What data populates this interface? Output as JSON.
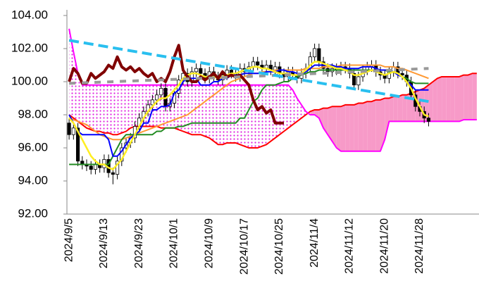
{
  "chart_data": {
    "type": "candlestick",
    "categories": [
      "2024/9/5",
      null,
      null,
      null,
      null,
      null,
      null,
      null,
      "2024/9/13",
      null,
      null,
      null,
      null,
      null,
      null,
      null,
      "2024/9/23",
      null,
      null,
      null,
      null,
      null,
      null,
      null,
      "2024/10/1",
      null,
      null,
      null,
      null,
      null,
      null,
      null,
      "2024/10/9",
      null,
      null,
      null,
      null,
      null,
      null,
      null,
      "2024/10/17",
      null,
      null,
      null,
      null,
      null,
      null,
      null,
      "2024/10/25",
      null,
      null,
      null,
      null,
      null,
      null,
      null,
      "2024/11/4",
      null,
      null,
      null,
      null,
      null,
      null,
      null,
      "2024/11/12",
      null,
      null,
      null,
      null,
      null,
      null,
      null,
      "2024/11/20",
      null,
      null,
      null,
      null,
      null,
      null,
      null,
      "2024/11/28",
      null,
      null,
      null,
      null,
      null,
      null,
      null,
      null,
      null,
      null,
      null,
      null,
      null
    ],
    "ylim": [
      92,
      104
    ],
    "yticks": [
      {
        "value": 92,
        "label": "92.00"
      },
      {
        "value": 94,
        "label": "94.00"
      },
      {
        "value": 96,
        "label": "96.00"
      },
      {
        "value": 98,
        "label": "98.00"
      },
      {
        "value": 100,
        "label": "100.00"
      },
      {
        "value": 102,
        "label": "102.00"
      },
      {
        "value": 104,
        "label": "104.00"
      }
    ],
    "grid": false,
    "candles": {
      "up_color": "#ffffff",
      "down_color": "#000000",
      "open": [
        97.5,
        96.8,
        97.2,
        95.2,
        95.0,
        94.9,
        94.7,
        95.0,
        94.8,
        95.3,
        94.5,
        94.4,
        95.2,
        96.0,
        96.3,
        96.6,
        97.3,
        97.8,
        98.2,
        98.6,
        98.9,
        99.2,
        99.6,
        98.5,
        98.7,
        99.3,
        100.1,
        100.5,
        100.0,
        100.6,
        100.8,
        100.5,
        100.2,
        100.6,
        100.3,
        100.1,
        100.4,
        100.7,
        100.5,
        100.3,
        100.8,
        100.6,
        100.9,
        101.2,
        101.0,
        100.8,
        101.0,
        100.7,
        100.9,
        100.5,
        100.3,
        100.6,
        100.4,
        100.2,
        100.5,
        100.8,
        101.5,
        102.0,
        101.2,
        100.8,
        100.6,
        100.8,
        100.7,
        100.9,
        100.8,
        100.5,
        99.8,
        100.3,
        100.7,
        100.9,
        101.0,
        100.6,
        100.4,
        100.2,
        100.6,
        100.9,
        100.5,
        100.4,
        100.0,
        99.2,
        98.5,
        98.2,
        97.8,
        null,
        null,
        null,
        null,
        null,
        null,
        null,
        null,
        null,
        null,
        null
      ],
      "high": [
        97.8,
        97.5,
        97.5,
        95.5,
        95.3,
        95.2,
        95.3,
        95.3,
        95.6,
        95.6,
        94.8,
        95.5,
        96.3,
        96.6,
        96.9,
        97.6,
        98.1,
        98.5,
        98.9,
        99.2,
        99.5,
        99.9,
        99.9,
        99.0,
        99.6,
        100.4,
        100.8,
        100.8,
        100.9,
        101.1,
        101.1,
        100.8,
        100.9,
        100.9,
        100.6,
        100.7,
        101.0,
        101.0,
        100.8,
        101.1,
        101.1,
        101.2,
        101.5,
        101.5,
        101.3,
        101.3,
        101.3,
        101.2,
        101.2,
        100.8,
        100.9,
        100.9,
        100.7,
        100.8,
        101.1,
        101.8,
        102.3,
        102.3,
        101.5,
        101.1,
        101.1,
        101.1,
        101.2,
        101.2,
        101.1,
        100.8,
        100.6,
        101.0,
        101.2,
        101.3,
        101.3,
        100.9,
        100.7,
        100.9,
        101.2,
        101.2,
        100.8,
        100.7,
        100.3,
        99.5,
        98.8,
        98.5,
        98.1,
        null,
        null,
        null,
        null,
        null,
        null,
        null,
        null,
        null,
        null,
        null
      ],
      "low": [
        96.5,
        96.5,
        94.9,
        94.7,
        94.6,
        94.4,
        94.4,
        94.5,
        94.5,
        94.2,
        93.8,
        94.1,
        94.9,
        95.7,
        96.0,
        96.3,
        97.0,
        97.5,
        97.9,
        98.3,
        98.6,
        98.9,
        98.2,
        98.2,
        98.4,
        99.0,
        99.8,
        99.7,
        99.7,
        100.3,
        100.2,
        99.9,
        99.9,
        100.0,
        99.8,
        99.8,
        100.1,
        100.2,
        100.0,
        100.0,
        100.3,
        100.3,
        100.6,
        100.7,
        100.5,
        100.5,
        100.4,
        100.4,
        100.2,
        100.0,
        100.0,
        100.1,
        99.9,
        99.9,
        100.2,
        100.5,
        101.2,
        100.9,
        100.5,
        100.3,
        100.3,
        100.4,
        100.4,
        100.5,
        100.2,
        99.5,
        99.5,
        100.0,
        100.4,
        100.6,
        100.3,
        100.1,
        99.9,
        99.9,
        100.3,
        100.2,
        100.1,
        99.7,
        98.9,
        98.2,
        97.9,
        97.5,
        97.3,
        null,
        null,
        null,
        null,
        null,
        null,
        null,
        null,
        null,
        null,
        null
      ],
      "close": [
        96.8,
        97.2,
        95.2,
        95.0,
        94.9,
        94.7,
        95.0,
        94.8,
        95.3,
        94.5,
        94.4,
        95.2,
        96.0,
        96.3,
        96.6,
        97.3,
        97.8,
        98.2,
        98.6,
        98.9,
        99.2,
        99.6,
        98.5,
        98.7,
        99.3,
        100.1,
        100.5,
        100.0,
        100.6,
        100.8,
        100.5,
        100.2,
        100.6,
        100.3,
        100.1,
        100.4,
        100.7,
        100.5,
        100.3,
        100.8,
        100.6,
        100.9,
        101.2,
        101.0,
        100.8,
        101.0,
        100.7,
        100.9,
        100.5,
        100.3,
        100.6,
        100.4,
        100.2,
        100.5,
        100.8,
        101.5,
        102.0,
        101.2,
        100.8,
        100.6,
        100.8,
        100.7,
        100.9,
        100.8,
        100.5,
        99.8,
        100.3,
        100.7,
        100.9,
        101.0,
        100.6,
        100.4,
        100.2,
        100.6,
        100.9,
        100.5,
        100.4,
        100.0,
        99.2,
        98.5,
        98.2,
        97.8,
        97.6,
        null,
        null,
        null,
        null,
        null,
        null,
        null,
        null,
        null,
        null,
        null
      ]
    },
    "cloud": {
      "fill_b_above": "#e020e0",
      "fill_a_above": "#f79ac8",
      "span_a": {
        "color": "#ff0000",
        "values": [
          98.0,
          97.8,
          97.6,
          97.4,
          97.2,
          97.1,
          97.0,
          97.0,
          96.9,
          96.9,
          96.8,
          96.8,
          96.9,
          97.0,
          97.2,
          97.3,
          97.3,
          97.3,
          97.3,
          97.3,
          97.3,
          97.2,
          97.2,
          97.2,
          97.2,
          97.1,
          97.0,
          96.9,
          96.8,
          96.8,
          96.8,
          96.7,
          96.6,
          96.4,
          96.2,
          96.2,
          96.3,
          96.3,
          96.3,
          96.2,
          96.1,
          96.0,
          96.0,
          96.0,
          96.1,
          96.2,
          96.4,
          96.6,
          96.8,
          97.0,
          97.2,
          97.4,
          97.6,
          97.8,
          98.0,
          98.2,
          98.3,
          98.3,
          98.4,
          98.4,
          98.5,
          98.5,
          98.5,
          98.6,
          98.6,
          98.6,
          98.7,
          98.7,
          98.8,
          98.8,
          98.9,
          98.9,
          99.0,
          99.0,
          99.1,
          99.1,
          99.2,
          99.2,
          99.3,
          99.4,
          99.5,
          99.6,
          99.8,
          100.0,
          100.2,
          100.3,
          100.3,
          100.3,
          100.3,
          100.3,
          100.4,
          100.4,
          100.5,
          100.5
        ]
      },
      "span_b": {
        "color": "#ff00ff",
        "values": [
          103.2,
          101.8,
          100.5,
          99.8,
          99.8,
          99.8,
          99.8,
          99.8,
          99.8,
          99.8,
          99.8,
          99.8,
          99.8,
          99.8,
          99.8,
          99.8,
          99.8,
          99.8,
          99.8,
          99.8,
          99.8,
          99.8,
          99.8,
          99.8,
          99.8,
          99.8,
          99.8,
          99.8,
          99.8,
          99.8,
          99.8,
          99.8,
          99.8,
          99.8,
          99.8,
          99.8,
          99.8,
          99.8,
          99.8,
          99.8,
          99.8,
          99.8,
          99.8,
          99.8,
          99.8,
          99.8,
          99.8,
          99.8,
          99.8,
          99.8,
          99.8,
          99.5,
          99.0,
          98.6,
          98.2,
          98.0,
          98.0,
          97.8,
          97.2,
          96.8,
          96.4,
          96.0,
          95.8,
          95.8,
          95.8,
          95.8,
          95.8,
          95.8,
          95.8,
          95.8,
          95.8,
          95.8,
          96.5,
          97.6,
          97.6,
          97.6,
          97.6,
          97.6,
          97.6,
          97.6,
          97.6,
          97.6,
          97.6,
          97.6,
          97.6,
          97.6,
          97.6,
          97.6,
          97.6,
          97.6,
          97.7,
          97.7,
          97.7,
          97.7
        ]
      }
    },
    "series": [
      {
        "color": "#ff9933",
        "width": 2,
        "values": [
          97.8,
          97.7,
          97.6,
          97.5,
          97.4,
          97.2,
          97.0,
          96.8,
          96.7,
          96.6,
          96.5,
          96.5,
          96.5,
          96.6,
          96.7,
          96.8,
          96.9,
          97.0,
          97.1,
          97.2,
          97.3,
          97.4,
          97.5,
          97.6,
          97.7,
          97.8,
          97.9,
          98.0,
          98.2,
          98.4,
          98.6,
          98.8,
          99.0,
          99.2,
          99.4,
          99.6,
          99.8,
          100.0,
          100.1,
          100.2,
          100.3,
          100.4,
          100.5,
          100.5,
          100.6,
          100.6,
          100.6,
          100.7,
          100.7,
          100.7,
          100.7,
          100.7,
          100.7,
          100.7,
          100.8,
          100.8,
          100.8,
          100.8,
          100.9,
          100.9,
          100.9,
          100.9,
          101.0,
          101.0,
          101.0,
          101.0,
          101.0,
          101.0,
          101.0,
          101.0,
          101.0,
          101.0,
          100.9,
          100.9,
          100.9,
          100.8,
          100.8,
          100.7,
          100.6,
          100.5,
          100.4,
          100.3,
          100.2,
          null,
          null,
          null,
          null,
          null,
          null,
          null,
          null,
          null,
          null,
          null
        ]
      },
      {
        "color": "#228b22",
        "width": 2,
        "values": [
          95.0,
          95.0,
          95.0,
          95.0,
          95.0,
          95.0,
          95.0,
          95.0,
          95.0,
          95.0,
          95.5,
          96.0,
          96.5,
          96.8,
          96.8,
          96.8,
          96.8,
          96.8,
          96.8,
          96.8,
          97.0,
          97.0,
          97.2,
          97.2,
          97.2,
          97.3,
          97.3,
          97.4,
          97.5,
          97.5,
          97.5,
          97.5,
          97.5,
          97.5,
          97.5,
          97.5,
          97.5,
          97.5,
          97.5,
          97.8,
          97.8,
          98.3,
          98.8,
          99.0,
          99.5,
          99.8,
          99.8,
          99.8,
          99.9,
          100.0,
          100.0,
          100.2,
          100.3,
          100.4,
          100.5,
          100.6,
          100.6,
          100.7,
          100.7,
          100.7,
          100.7,
          100.7,
          100.7,
          100.7,
          100.7,
          100.7,
          100.7,
          100.7,
          100.7,
          100.7,
          100.7,
          100.7,
          100.7,
          100.6,
          100.6,
          100.5,
          100.3,
          100.2,
          100.0,
          99.9,
          99.9,
          99.9,
          99.9,
          null,
          null,
          null,
          null,
          null,
          null,
          null,
          null,
          null,
          null,
          null
        ]
      },
      {
        "color": "#0000ff",
        "width": 2,
        "values": [
          98.0,
          97.5,
          97.0,
          96.8,
          96.8,
          96.8,
          96.8,
          96.8,
          96.8,
          96.5,
          95.5,
          95.5,
          95.8,
          96.2,
          96.6,
          96.8,
          97.0,
          97.5,
          97.5,
          98.3,
          98.3,
          98.5,
          98.5,
          98.6,
          99.3,
          99.5,
          100.0,
          100.2,
          100.2,
          100.2,
          99.8,
          99.8,
          99.8,
          100.0,
          100.0,
          100.2,
          100.2,
          100.4,
          100.4,
          100.4,
          100.5,
          100.5,
          100.5,
          100.5,
          100.5,
          100.6,
          100.6,
          100.6,
          100.7,
          100.7,
          100.6,
          100.6,
          100.5,
          100.5,
          100.6,
          100.8,
          101.0,
          101.0,
          101.0,
          101.0,
          101.0,
          100.9,
          100.9,
          100.8,
          100.8,
          100.8,
          100.8,
          100.9,
          100.9,
          100.9,
          100.8,
          100.7,
          100.7,
          100.7,
          100.6,
          100.4,
          100.3,
          100.0,
          99.8,
          99.5,
          99.5,
          99.5,
          99.5,
          null,
          null,
          null,
          null,
          null,
          null,
          null,
          null,
          null,
          null,
          null
        ]
      },
      {
        "color": "#ffee22",
        "width": 2.5,
        "values": [
          97.8,
          97.5,
          97.0,
          96.5,
          96.0,
          95.5,
          95.2,
          95.0,
          95.0,
          94.8,
          94.7,
          95.0,
          95.3,
          95.8,
          96.3,
          96.8,
          97.3,
          97.8,
          98.2,
          98.5,
          98.8,
          99.0,
          99.0,
          99.2,
          99.5,
          99.8,
          100.2,
          100.4,
          100.5,
          100.5,
          100.4,
          100.3,
          100.3,
          100.3,
          100.2,
          100.3,
          100.4,
          100.5,
          100.5,
          100.6,
          100.7,
          100.8,
          100.9,
          100.9,
          100.8,
          100.8,
          100.7,
          100.6,
          100.5,
          100.5,
          100.5,
          100.4,
          100.4,
          100.5,
          100.7,
          101.0,
          101.2,
          101.2,
          101.1,
          101.0,
          100.9,
          100.8,
          100.8,
          100.7,
          100.6,
          100.4,
          100.4,
          100.5,
          100.6,
          100.7,
          100.6,
          100.5,
          100.4,
          100.5,
          100.6,
          100.5,
          100.3,
          100.0,
          99.6,
          99.0,
          98.5,
          98.0,
          97.9,
          null,
          null,
          null,
          null,
          null,
          null,
          null,
          null,
          null,
          null,
          null
        ]
      },
      {
        "color": "#800000",
        "width": 4,
        "values": [
          100.0,
          100.8,
          100.5,
          99.9,
          99.9,
          100.5,
          100.2,
          100.4,
          100.6,
          101.0,
          100.8,
          101.5,
          100.9,
          100.7,
          100.9,
          100.6,
          100.8,
          100.5,
          100.3,
          100.5,
          100.0,
          100.2,
          100.0,
          100.6,
          101.5,
          102.2,
          100.7,
          100.3,
          100.0,
          100.0,
          100.3,
          100.1,
          100.3,
          100.5,
          100.2,
          100.6,
          100.3,
          100.4,
          100.3,
          100.4,
          100.1,
          99.8,
          98.9,
          98.3,
          98.5,
          98.1,
          98.3,
          97.5,
          97.5,
          97.5,
          null,
          null,
          null,
          null,
          null,
          null,
          null,
          null,
          null,
          null,
          null,
          null,
          null,
          null,
          null,
          null,
          null,
          null,
          null,
          null,
          null,
          null,
          null,
          null,
          null,
          null,
          null,
          null,
          null,
          null,
          null,
          null,
          null,
          null,
          null,
          null,
          null,
          null,
          null,
          null,
          null,
          null,
          null,
          null
        ]
      }
    ],
    "trendlines": [
      {
        "color": "#999999",
        "dash": "9 9",
        "points": [
          [
            0,
            99.9
          ],
          [
            40,
            100.3
          ],
          [
            82,
            100.8
          ]
        ]
      },
      {
        "color": "#29bfef",
        "dash": "14 7",
        "points": [
          [
            0,
            102.5
          ],
          [
            82,
            98.8
          ]
        ]
      }
    ]
  }
}
